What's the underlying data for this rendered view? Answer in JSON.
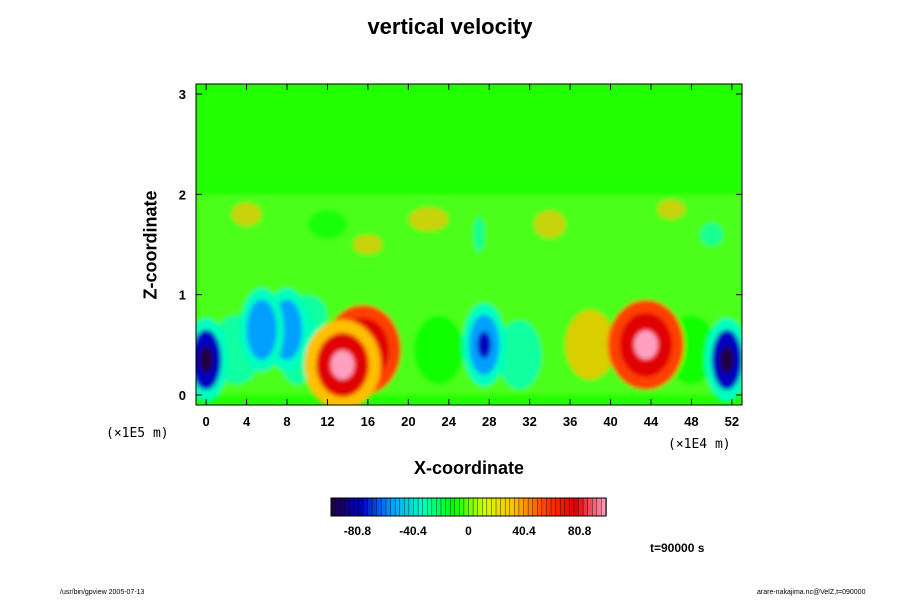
{
  "chart_data": {
    "type": "heatmap",
    "title": "vertical velocity",
    "xlabel": "X-coordinate",
    "ylabel": "Z-coordinate",
    "x_ticks": [
      0,
      4,
      8,
      12,
      16,
      20,
      24,
      28,
      32,
      36,
      40,
      44,
      48,
      52
    ],
    "y_ticks": [
      0,
      1,
      2,
      3
    ],
    "xlim": [
      -1,
      53
    ],
    "ylim": [
      -0.1,
      3.1
    ],
    "x_unit_label": "(×1E4 m)",
    "y_unit_label": "(×1E5 m)",
    "colorbar": {
      "ticks": [
        -80.8,
        -40.4,
        0,
        40.4,
        80.8
      ],
      "tick_labels": [
        "-80.8",
        "-40.4",
        "0",
        "40.4",
        "80.8"
      ],
      "range": [
        -100,
        100
      ],
      "colors": [
        "#200040",
        "#0000c0",
        "#00a0ff",
        "#00ffc0",
        "#00ff00",
        "#d0ff00",
        "#ffc000",
        "#ff4000",
        "#e00000",
        "#ffa0c0"
      ]
    },
    "features": [
      {
        "x": 15.5,
        "z": 0.45,
        "value": 90
      },
      {
        "x": 13.5,
        "z": 0.3,
        "value": 85
      },
      {
        "x": 43.5,
        "z": 0.5,
        "value": 100
      },
      {
        "x": 0,
        "z": 0.35,
        "value": -85
      },
      {
        "x": 51.5,
        "z": 0.35,
        "value": -85
      },
      {
        "x": 27.5,
        "z": 0.5,
        "value": -80
      },
      {
        "x": 8,
        "z": 0.65,
        "value": -70
      },
      {
        "x": 5.5,
        "z": 0.65,
        "value": -55
      }
    ],
    "time_label": "t=90000 s"
  },
  "footer": {
    "left": "/usr/bin/gpview 2005-07-13",
    "right": "arare-nakajima.nc@VelZ,t=090000"
  }
}
